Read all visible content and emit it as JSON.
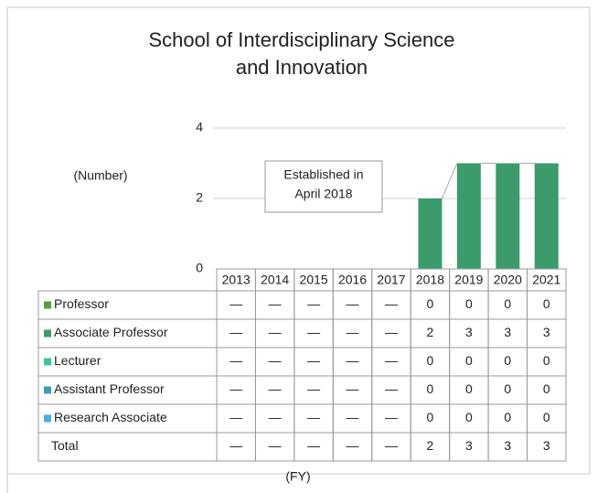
{
  "chart_data": {
    "type": "bar",
    "stacked": true,
    "title": [
      "School of Interdisciplinary Science",
      "and Innovation"
    ],
    "ylabel": "(Number)",
    "xlabel": "(FY)",
    "annotation": [
      "Established in",
      "April 2018"
    ],
    "categories": [
      "2013",
      "2014",
      "2015",
      "2016",
      "2017",
      "2018",
      "2019",
      "2020",
      "2021"
    ],
    "series": [
      {
        "name": "Professor",
        "color": "#5b9b3c",
        "values": [
          null,
          null,
          null,
          null,
          null,
          0,
          0,
          0,
          0
        ],
        "value_labels": [
          "—",
          "—",
          "—",
          "—",
          "—",
          "0",
          "0",
          "0",
          "0"
        ]
      },
      {
        "name": "Associate Professor",
        "color": "#3b9b6a",
        "values": [
          null,
          null,
          null,
          null,
          null,
          2,
          3,
          3,
          3
        ],
        "value_labels": [
          "—",
          "—",
          "—",
          "—",
          "—",
          "2",
          "3",
          "3",
          "3"
        ]
      },
      {
        "name": "Lecturer",
        "color": "#3cc4a0",
        "values": [
          null,
          null,
          null,
          null,
          null,
          0,
          0,
          0,
          0
        ],
        "value_labels": [
          "—",
          "—",
          "—",
          "—",
          "—",
          "0",
          "0",
          "0",
          "0"
        ]
      },
      {
        "name": "Assistant Professor",
        "color": "#3c9bb5",
        "values": [
          null,
          null,
          null,
          null,
          null,
          0,
          0,
          0,
          0
        ],
        "value_labels": [
          "—",
          "—",
          "—",
          "—",
          "—",
          "0",
          "0",
          "0",
          "0"
        ]
      },
      {
        "name": "Research Associate",
        "color": "#4aaee0",
        "values": [
          null,
          null,
          null,
          null,
          null,
          0,
          0,
          0,
          0
        ],
        "value_labels": [
          "—",
          "—",
          "—",
          "—",
          "—",
          "0",
          "0",
          "0",
          "0"
        ]
      }
    ],
    "total": {
      "name": "Total",
      "values": [
        null,
        null,
        null,
        null,
        null,
        2,
        3,
        3,
        3
      ],
      "value_labels": [
        "—",
        "—",
        "—",
        "—",
        "—",
        "2",
        "3",
        "3",
        "3"
      ]
    },
    "ylim": [
      0,
      4
    ],
    "yticks": [
      0,
      2,
      4
    ],
    "grid": true
  }
}
